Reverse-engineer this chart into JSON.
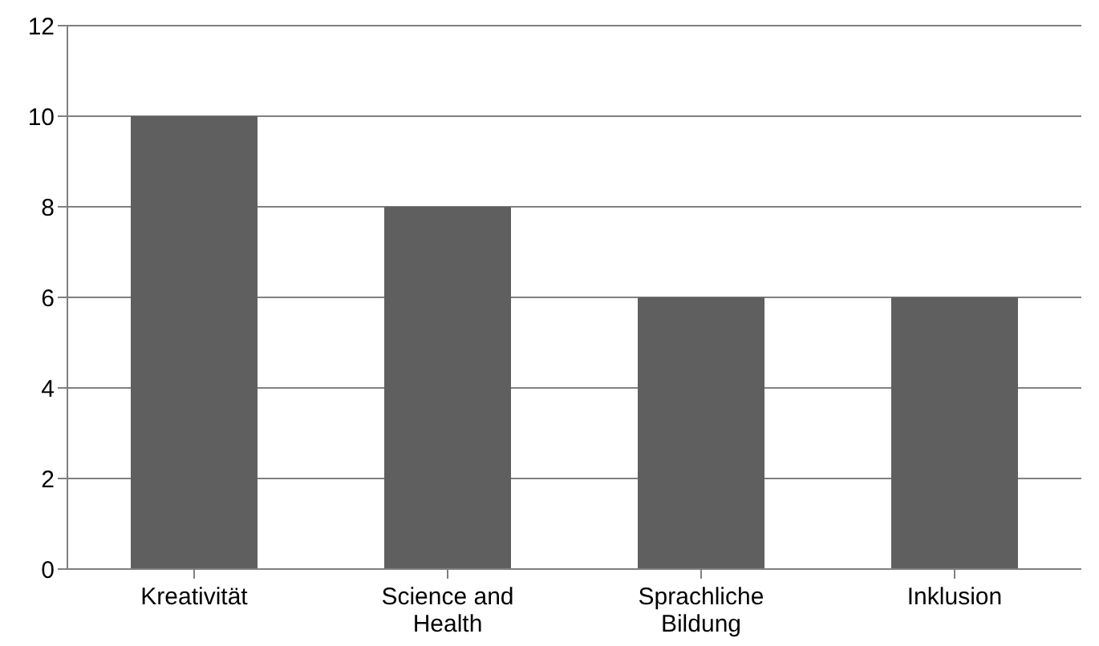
{
  "chart_data": {
    "type": "bar",
    "categories": [
      "Kreativität",
      "Science and Health",
      "Sprachliche Bildung",
      "Inklusion"
    ],
    "values": [
      10,
      8,
      6,
      6
    ],
    "color": "#5f5f5f",
    "ylim": [
      0,
      12
    ],
    "yticks": [
      0,
      2,
      4,
      6,
      8,
      10,
      12
    ],
    "grid": "y"
  }
}
